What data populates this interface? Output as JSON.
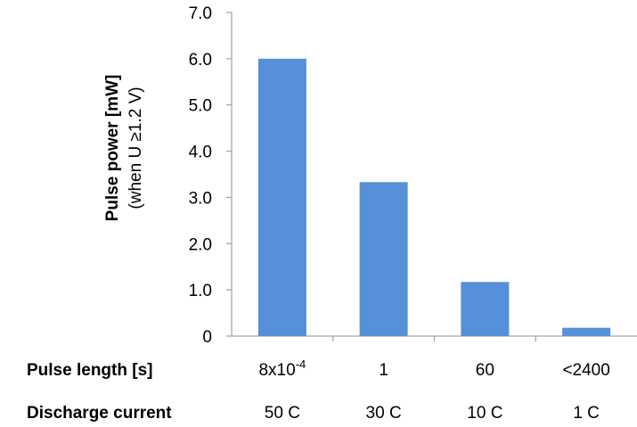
{
  "chart_data": {
    "type": "bar",
    "categories": [
      "8x10-4",
      "1",
      "60",
      "<2400"
    ],
    "values": [
      6.0,
      3.33,
      1.17,
      0.18
    ],
    "ylabel": "Pulse power [mW]",
    "ylabel_sub": "(when U ≥1.2 V)",
    "ylim": [
      0,
      7
    ],
    "yticks": [
      "0",
      "1.0",
      "2.0",
      "3.0",
      "4.0",
      "5.0",
      "6.0",
      "7.0"
    ],
    "grid": false,
    "bar_color": "#5590D9",
    "axis_color": "#A6A6A6",
    "rows": [
      {
        "title": "Pulse length [s]",
        "labels": [
          {
            "base": "8x10",
            "sup": "-4"
          },
          {
            "base": "1",
            "sup": ""
          },
          {
            "base": "60",
            "sup": ""
          },
          {
            "base": "<2400",
            "sup": ""
          }
        ]
      },
      {
        "title": "Discharge current",
        "labels": [
          {
            "base": "50 C",
            "sup": ""
          },
          {
            "base": "30 C",
            "sup": ""
          },
          {
            "base": "10 C",
            "sup": ""
          },
          {
            "base": "1 C",
            "sup": ""
          }
        ]
      }
    ]
  }
}
